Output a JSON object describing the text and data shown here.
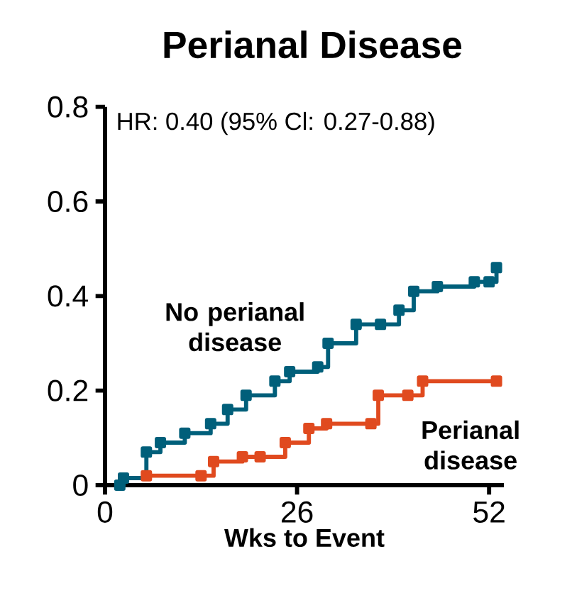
{
  "chart_data": {
    "type": "step",
    "title": "Perianal Disease",
    "xlabel": "Wks to Event",
    "annotations": [
      "HR: 0.40 (95% Cl: 0.27-0.88)"
    ],
    "xlim": [
      0,
      54
    ],
    "ylim": [
      0,
      0.8
    ],
    "xticks": [
      0,
      26,
      52
    ],
    "yticks": [
      0,
      0.2,
      0.4,
      0.6,
      0.8
    ],
    "marker": "square",
    "line_style": "solid",
    "series": [
      {
        "name": "No perianal disease",
        "color": "#005f7a",
        "x": [
          2,
          2.5,
          5.6,
          7.5,
          10.8,
          14.3,
          16.6,
          19.1,
          23,
          25,
          28.8,
          30.2,
          34,
          37.3,
          39.8,
          41.8,
          45,
          50,
          52,
          53
        ],
        "values": [
          0,
          0.015,
          0.07,
          0.09,
          0.11,
          0.13,
          0.16,
          0.19,
          0.22,
          0.24,
          0.25,
          0.3,
          0.34,
          0.34,
          0.37,
          0.41,
          0.42,
          0.43,
          0.43,
          0.46
        ]
      },
      {
        "name": "Perianal disease",
        "color": "#e04a1f",
        "x": [
          5.6,
          13,
          14.7,
          18.6,
          21,
          24.4,
          27.6,
          30,
          36,
          37,
          41,
          43,
          53
        ],
        "values": [
          0.02,
          0.02,
          0.05,
          0.06,
          0.06,
          0.09,
          0.12,
          0.13,
          0.13,
          0.19,
          0.19,
          0.22,
          0.22
        ]
      }
    ]
  }
}
